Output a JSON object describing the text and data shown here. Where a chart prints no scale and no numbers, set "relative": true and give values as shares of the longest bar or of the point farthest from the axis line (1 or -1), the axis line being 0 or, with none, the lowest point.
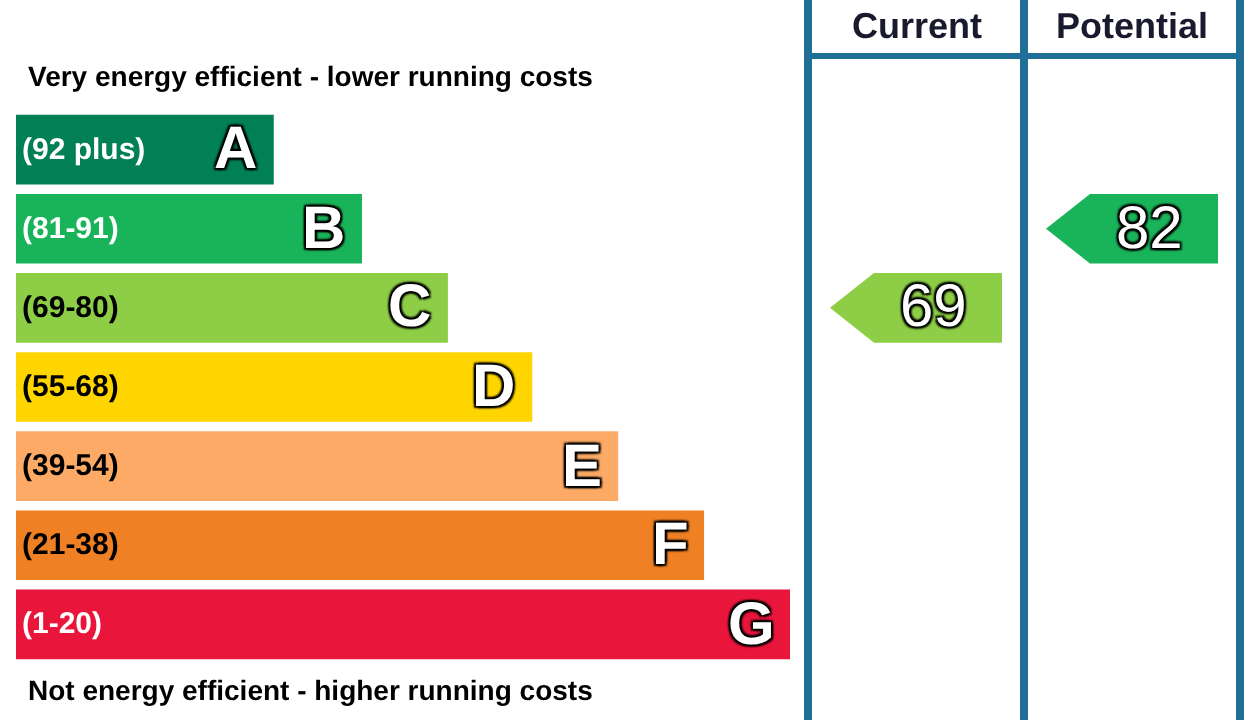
{
  "chart_data": {
    "type": "bar",
    "orientation": "horizontal",
    "relative": true,
    "title": "Very energy efficient - lower running costs",
    "categories": [
      "(92 plus) A",
      "(81-91) B",
      "(69-80) C",
      "(55-68) D",
      "(39-54) E",
      "(21-38) F",
      "(1-20) G"
    ],
    "values": [
      0.333,
      0.447,
      0.558,
      0.667,
      0.778,
      0.889,
      1
    ],
    "colors": [
      "#008054",
      "#19b459",
      "#8dce46",
      "#ffd500",
      "#fcaa65",
      "#ef8023",
      "#e9153b"
    ],
    "annotations": [
      "Not energy efficient - higher running costs",
      "Current",
      "Potential",
      "69",
      "82"
    ],
    "legend": false
  }
}
